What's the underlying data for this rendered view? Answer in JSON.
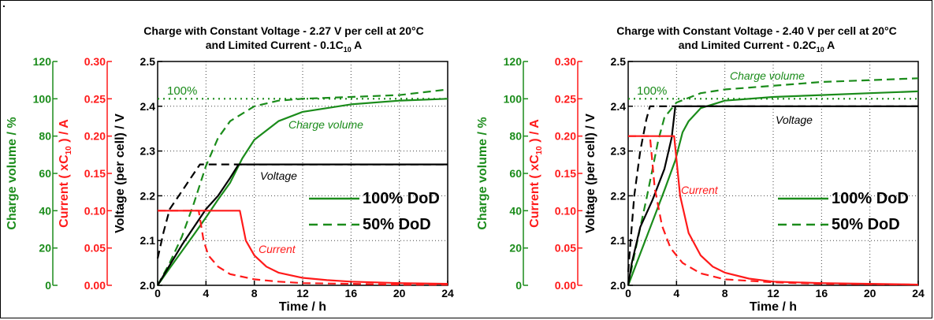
{
  "page_mark": ".",
  "legend_labels": {
    "solid": "100% DoD",
    "dashed": "50% DoD"
  },
  "colors": {
    "green": "#1b8c1b",
    "red": "#ff1a1a",
    "black": "#000000"
  },
  "chart_data": [
    {
      "type": "line",
      "title_line1": "Charge with Constant Voltage - 2.27 V per cell at 20°C",
      "title_line2": "and Limited Current - 0.1C",
      "title_sub": "10",
      "title_unit": "A",
      "xlabel": "Time / h",
      "x_ticks": [
        "0",
        "4",
        "8",
        "12",
        "16",
        "20",
        "24"
      ],
      "xlim": [
        0,
        24
      ],
      "grid": true,
      "axes": [
        {
          "id": "charge",
          "label": "Charge volume / %",
          "color": "#1b8c1b",
          "ylim": [
            0,
            120
          ],
          "ticks": [
            "0",
            "20",
            "40",
            "60",
            "80",
            "100",
            "120"
          ]
        },
        {
          "id": "current",
          "label_pre": "Current ( xC",
          "label_sub": "10",
          "label_post": " ) / A",
          "color": "#ff1a1a",
          "ylim": [
            0,
            0.3
          ],
          "ticks": [
            "0.00",
            "0.05",
            "0.10",
            "0.15",
            "0.20",
            "0.25",
            "0.30"
          ]
        },
        {
          "id": "voltage",
          "label": "Voltage (per cell) / V",
          "color": "#000000",
          "ylim": [
            2.0,
            2.5
          ],
          "ticks": [
            "2.0",
            "2.1",
            "2.2",
            "2.3",
            "2.4",
            "2.5"
          ]
        }
      ],
      "legend_position": "center-right",
      "annotations": {
        "level_100": "100%",
        "charge_volume": "Charge volume",
        "voltage": "Voltage",
        "current": "Current"
      },
      "series": [
        {
          "name": "Charge volume",
          "dod": "100%",
          "axis": "charge",
          "style": "solid",
          "x": [
            0,
            1,
            2,
            3,
            4,
            5,
            6,
            7,
            8,
            10,
            12,
            16,
            20,
            24
          ],
          "values": [
            0,
            9.2,
            18.2,
            27.2,
            36.4,
            46,
            55,
            68,
            78,
            88,
            93,
            97,
            99,
            100
          ]
        },
        {
          "name": "Charge volume",
          "dod": "50%",
          "axis": "charge",
          "style": "dashed",
          "x": [
            0,
            1,
            2,
            3,
            4,
            5,
            6,
            8,
            10,
            12,
            16,
            20,
            24
          ],
          "values": [
            0,
            12,
            26,
            44,
            64,
            79,
            88,
            96,
            99,
            100,
            101,
            102,
            105
          ]
        },
        {
          "name": "Voltage",
          "dod": "100%",
          "axis": "voltage",
          "style": "solid",
          "x": [
            0,
            2,
            4,
            5,
            6,
            6.7,
            24
          ],
          "values": [
            2.0,
            2.09,
            2.17,
            2.2,
            2.24,
            2.27,
            2.27
          ]
        },
        {
          "name": "Voltage",
          "dod": "50%",
          "axis": "voltage",
          "style": "dashed",
          "x": [
            0,
            0.5,
            1,
            2,
            3,
            3.5,
            24
          ],
          "values": [
            2.06,
            2.12,
            2.17,
            2.21,
            2.25,
            2.27,
            2.27
          ]
        },
        {
          "name": "Current",
          "dod": "100%",
          "axis": "current",
          "style": "solid",
          "x": [
            0,
            6.8,
            7.3,
            8,
            9,
            10,
            12,
            14,
            16,
            20,
            24
          ],
          "values": [
            0.1,
            0.1,
            0.06,
            0.04,
            0.025,
            0.017,
            0.01,
            0.007,
            0.005,
            0.003,
            0.002
          ]
        },
        {
          "name": "Current",
          "dod": "50%",
          "axis": "current",
          "style": "dashed",
          "x": [
            0,
            3.4,
            3.8,
            4.2,
            5,
            6,
            8,
            10,
            12,
            16,
            20,
            24
          ],
          "values": [
            0.1,
            0.1,
            0.06,
            0.04,
            0.025,
            0.015,
            0.008,
            0.005,
            0.003,
            0.002,
            0.001,
            0.001
          ]
        },
        {
          "name": "100% level",
          "axis": "charge",
          "style": "dotted",
          "x": [
            0,
            24
          ],
          "values": [
            100,
            100
          ]
        }
      ]
    },
    {
      "type": "line",
      "title_line1": "Charge with Constant Voltage - 2.40 V per cell at 20°C",
      "title_line2": "and Limited Current - 0.2C",
      "title_sub": "10",
      "title_unit": "A",
      "xlabel": "Time / h",
      "x_ticks": [
        "0",
        "4",
        "8",
        "12",
        "16",
        "20",
        "24"
      ],
      "xlim": [
        0,
        24
      ],
      "grid": true,
      "axes": [
        {
          "id": "charge",
          "label": "Charge volume / %",
          "color": "#1b8c1b",
          "ylim": [
            0,
            120
          ],
          "ticks": [
            "0",
            "20",
            "40",
            "60",
            "80",
            "100",
            "120"
          ]
        },
        {
          "id": "current",
          "label_pre": "Current ( xC",
          "label_sub": "10",
          "label_post": " ) / A",
          "color": "#ff1a1a",
          "ylim": [
            0,
            0.3
          ],
          "ticks": [
            "0.00",
            "0.05",
            "0.10",
            "0.15",
            "0.20",
            "0.25",
            "0.30"
          ]
        },
        {
          "id": "voltage",
          "label": "Voltage (per cell) / V",
          "color": "#000000",
          "ylim": [
            2.0,
            2.5
          ],
          "ticks": [
            "2.0",
            "2.1",
            "2.2",
            "2.3",
            "2.4",
            "2.5"
          ]
        }
      ],
      "legend_position": "center-right",
      "annotations": {
        "level_100": "100%",
        "charge_volume": "Charge volume",
        "voltage": "Voltage",
        "current": "Current"
      },
      "series": [
        {
          "name": "Charge volume",
          "dod": "100%",
          "axis": "charge",
          "style": "solid",
          "x": [
            0,
            1,
            2,
            3,
            3.9,
            4.5,
            5,
            6,
            8,
            12,
            16,
            20,
            24
          ],
          "values": [
            0,
            17,
            34,
            51,
            67,
            82,
            88,
            95,
            99,
            101,
            102,
            103,
            104
          ]
        },
        {
          "name": "Charge volume",
          "dod": "50%",
          "axis": "charge",
          "style": "dashed",
          "x": [
            0,
            0.5,
            1,
            1.5,
            2,
            2.5,
            3,
            4,
            6,
            8,
            12,
            16,
            20,
            24
          ],
          "values": [
            0,
            16,
            31,
            46,
            62,
            78,
            90,
            98,
            103,
            105,
            107,
            109,
            110,
            111
          ]
        },
        {
          "name": "Voltage",
          "dod": "100%",
          "axis": "voltage",
          "style": "solid",
          "x": [
            0,
            0.3,
            1,
            2,
            3,
            3.6,
            3.9,
            24
          ],
          "values": [
            2.0,
            2.05,
            2.13,
            2.19,
            2.26,
            2.33,
            2.4,
            2.4
          ]
        },
        {
          "name": "Voltage",
          "dod": "50%",
          "axis": "voltage",
          "style": "dashed",
          "x": [
            0,
            0.2,
            0.5,
            1,
            1.5,
            1.8,
            24
          ],
          "values": [
            2.03,
            2.1,
            2.2,
            2.3,
            2.37,
            2.4,
            2.4
          ]
        },
        {
          "name": "Current",
          "dod": "100%",
          "axis": "current",
          "style": "solid",
          "x": [
            0,
            3.8,
            4.3,
            5,
            6,
            7,
            8,
            10,
            12,
            16,
            20,
            24
          ],
          "values": [
            0.2,
            0.2,
            0.12,
            0.07,
            0.04,
            0.025,
            0.017,
            0.009,
            0.005,
            0.003,
            0.002,
            0.001
          ]
        },
        {
          "name": "Current",
          "dod": "50%",
          "axis": "current",
          "style": "dashed",
          "x": [
            0,
            1.8,
            2.2,
            2.8,
            3.5,
            4.5,
            6,
            8,
            12,
            16,
            24
          ],
          "values": [
            0.2,
            0.2,
            0.13,
            0.08,
            0.05,
            0.03,
            0.016,
            0.008,
            0.004,
            0.002,
            0.001
          ]
        },
        {
          "name": "100% level",
          "axis": "charge",
          "style": "dotted",
          "x": [
            0,
            24
          ],
          "values": [
            100,
            100
          ]
        }
      ]
    }
  ]
}
